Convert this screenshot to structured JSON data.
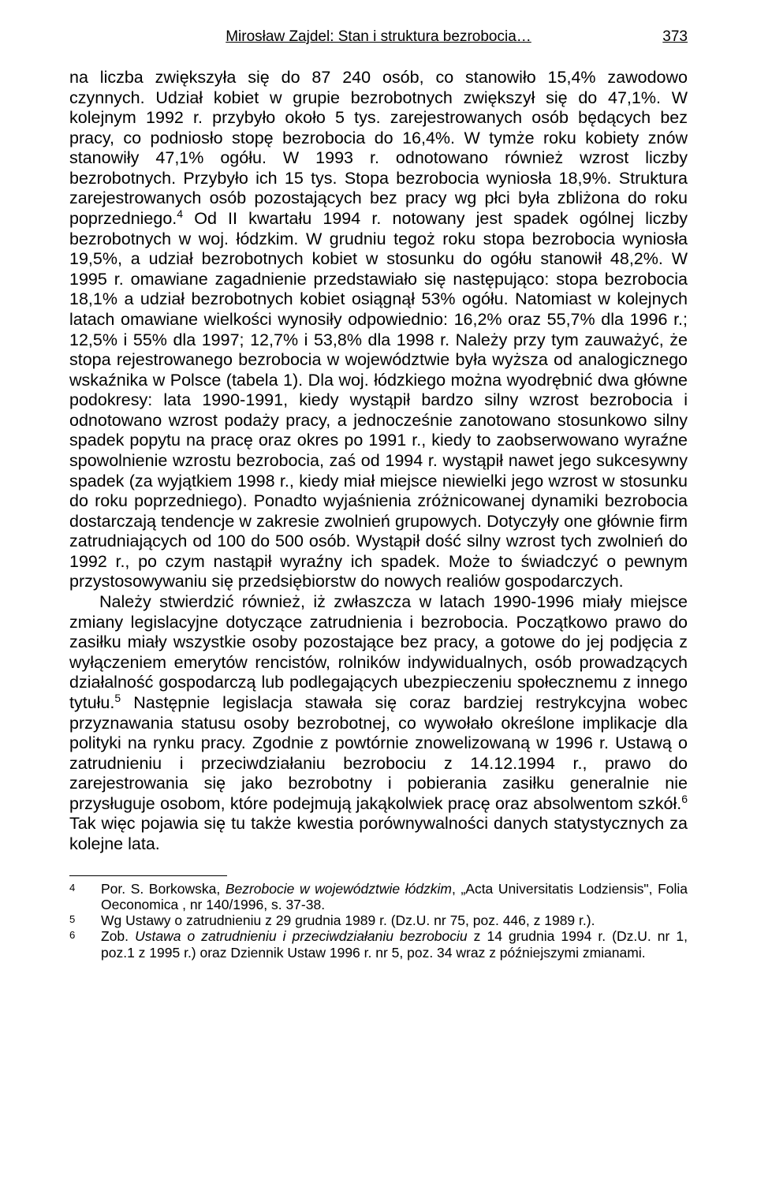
{
  "header": {
    "title": "Mirosław Zajdel: Stan i struktura bezrobocia…",
    "page_number": "373"
  },
  "body": {
    "p1": "na liczba zwiększyła się do 87 240 osób, co stanowiło 15,4% zawodowo czynnych. Udział kobiet w grupie bezrobotnych zwiększył się do 47,1%. W kolejnym 1992 r. przybyło około 5 tys. zarejestrowanych osób będących bez pracy, co podniosło stopę bezrobocia do 16,4%. W tymże roku kobiety znów stanowiły 47,1% ogółu. W 1993 r. odnotowano również wzrost liczby bezrobotnych. Przybyło ich 15 tys. Stopa bezrobocia wyniosła 18,9%. Struktura zarejestrowanych osób pozostających bez pracy wg płci była zbliżona do roku poprzedniego.",
    "p1_sup": "4",
    "p1_cont": " Od II kwartału 1994 r. notowany jest spadek ogólnej liczby bezrobotnych w woj. łódzkim. W grudniu tegoż roku stopa bezrobocia wyniosła 19,5%, a udział bezrobotnych kobiet w stosunku do ogółu stanowił 48,2%. W 1995 r. omawiane zagadnienie przedstawiało się następująco: stopa bezrobocia 18,1% a udział bezrobotnych kobiet osiągnął 53% ogółu. Natomiast w kolejnych latach omawiane wielkości wynosiły odpowiednio: 16,2% oraz 55,7% dla 1996 r.; 12,5% i 55% dla 1997; 12,7% i 53,8% dla 1998 r. Należy przy tym zauważyć, że stopa rejestrowanego bezrobocia w województwie była wyższa od analogicznego wskaźnika w Polsce (tabela 1). Dla woj. łódzkiego można wyodrębnić dwa główne podokresy: lata 1990-1991, kiedy wystąpił bardzo silny wzrost bezrobocia i odnotowano wzrost podaży pracy, a jednocześnie zanotowano stosunkowo silny spadek popytu na pracę oraz okres po 1991 r., kiedy to zaobserwowano wyraźne spowolnienie wzrostu bezrobocia, zaś od 1994 r. wystąpił nawet jego sukcesywny spadek (za wyjątkiem 1998 r., kiedy miał miejsce niewielki jego wzrost w stosunku do roku poprzedniego). Ponadto wyjaśnienia zróżnicowanej dynamiki bezrobocia dostarczają tendencje w zakresie zwolnień grupowych. Dotyczyły one głównie firm zatrudniających od 100 do 500 osób. Wystąpił dość silny wzrost tych zwolnień do 1992 r., po czym nastąpił wyraźny ich spadek. Może to świadczyć o pewnym przystosowywaniu się przedsiębiorstw do nowych realiów gospodarczych.",
    "p2_a": "Należy stwierdzić również, iż zwłaszcza w latach 1990-1996 miały miejsce zmiany legislacyjne dotyczące zatrudnienia i bezrobocia. Początkowo prawo do zasiłku miały wszystkie osoby pozostające bez pracy, a gotowe do jej podjęcia z wyłączeniem emerytów rencistów, rolników indywidualnych, osób prowadzących działalność gospodarczą lub podlegających ubezpieczeniu społecznemu z innego tytułu.",
    "p2_sup5": "5",
    "p2_b": " Następnie legislacja stawała się coraz bardziej restrykcyjna wobec przyznawania statusu osoby bezrobotnej, co wywołało określone implikacje dla polityki na rynku pracy. Zgodnie z powtórnie znowelizowaną w 1996 r. Ustawą o zatrudnieniu i przeciwdziałaniu bezrobociu z 14.12.1994 r., prawo do zarejestrowania się jako bezrobotny i pobierania zasiłku generalnie nie przysługuje osobom, które podejmują jakąkolwiek pracę oraz absolwentom szkół.",
    "p2_sup6": "6",
    "p2_c": " Tak więc pojawia się tu także kwestia porównywalności danych statystycznych za kolejne lata."
  },
  "footnotes": {
    "fn4_marker": "4",
    "fn4_a": "Por. S. Borkowska, ",
    "fn4_it": "Bezrobocie w województwie łódzkim",
    "fn4_b": ", „Acta Universitatis Lodziensis\", Folia Oeconomica , nr 140/1996, s. 37-38.",
    "fn5_marker": "5",
    "fn5": "Wg Ustawy o zatrudnieniu z 29 grudnia 1989 r. (Dz.U. nr 75, poz. 446, z 1989 r.).",
    "fn6_marker": "6",
    "fn6_a": "Zob. ",
    "fn6_it": "Ustawa o zatrudnieniu i przeciwdziałaniu bezrobociu",
    "fn6_b": " z 14 grudnia 1994 r. (Dz.U. nr 1, poz.1 z 1995 r.) oraz Dziennik Ustaw 1996 r. nr 5, poz. 34 wraz z późniejszymi zmianami."
  }
}
